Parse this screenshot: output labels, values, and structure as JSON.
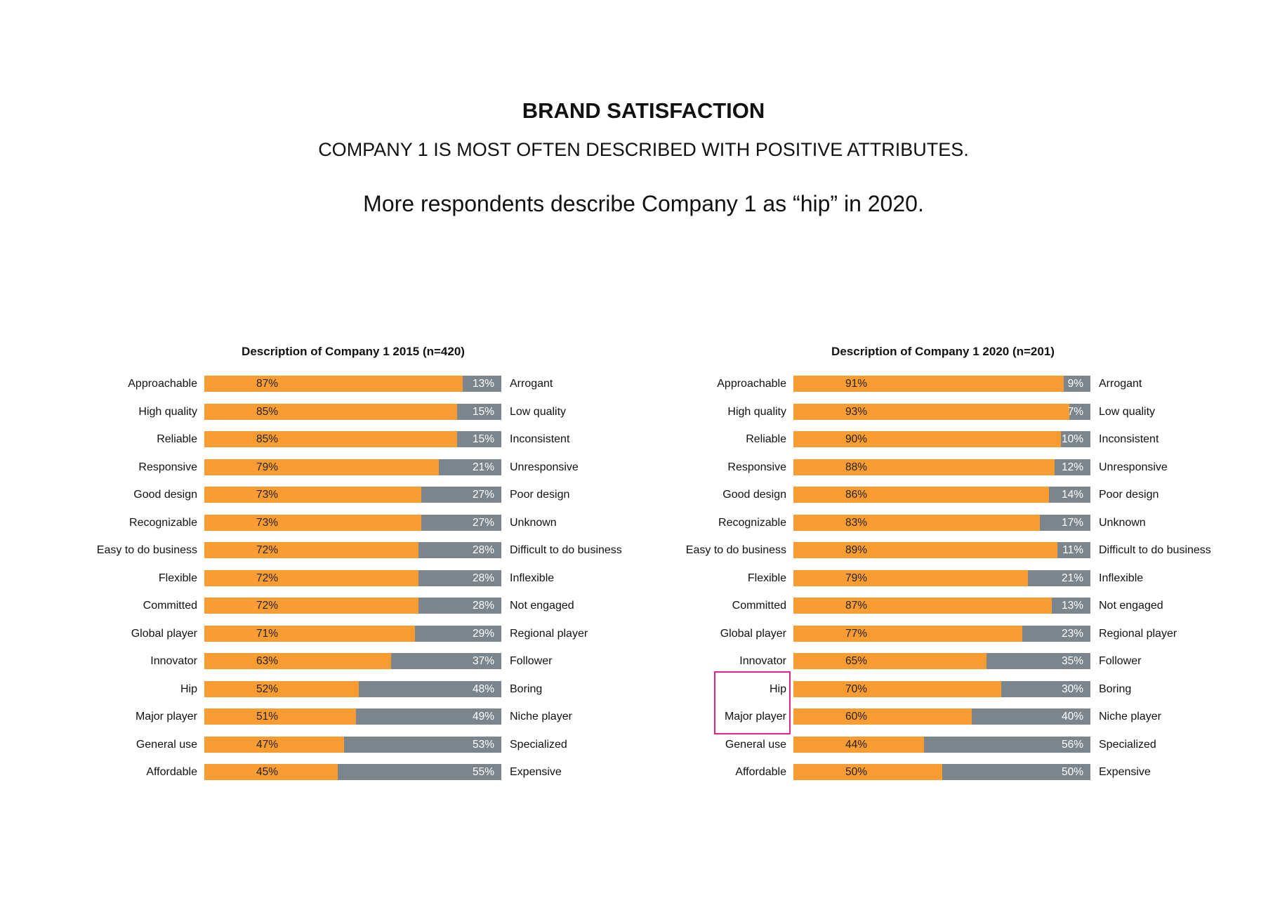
{
  "title": "BRAND SATISFACTION",
  "subtitle": "COMPANY 1 IS MOST OFTEN DESCRIBED WITH POSITIVE ATTRIBUTES.",
  "headline": "More respondents describe Company 1 as “hip” in 2020.",
  "colors": {
    "positive": "#F99D33",
    "negative": "#7B858E",
    "highlight": "#E0238C"
  },
  "chart_data": [
    {
      "type": "bar",
      "stacked": true,
      "orientation": "horizontal",
      "title": "Description of Company 1 2015 (n=420)",
      "categories": [
        "Approachable",
        "High quality",
        "Reliable",
        "Responsive",
        "Good design",
        "Recognizable",
        "Easy to do business",
        "Flexible",
        "Committed",
        "Global player",
        "Innovator",
        "Hip",
        "Major player",
        "General use",
        "Affordable"
      ],
      "opposites": [
        "Arrogant",
        "Low quality",
        "Inconsistent",
        "Unresponsive",
        "Poor design",
        "Unknown",
        "Difficult to do business",
        "Inflexible",
        "Not engaged",
        "Regional player",
        "Follower",
        "Boring",
        "Niche player",
        "Specialized",
        "Expensive"
      ],
      "series": [
        {
          "values": [
            87,
            85,
            85,
            79,
            73,
            73,
            72,
            72,
            72,
            71,
            63,
            52,
            51,
            47,
            45
          ]
        },
        {
          "values": [
            13,
            15,
            15,
            21,
            27,
            27,
            28,
            28,
            28,
            29,
            37,
            48,
            49,
            53,
            55
          ]
        }
      ],
      "unit": "%",
      "highlighted": []
    },
    {
      "type": "bar",
      "stacked": true,
      "orientation": "horizontal",
      "title": "Description of Company 1 2020 (n=201)",
      "categories": [
        "Approachable",
        "High quality",
        "Reliable",
        "Responsive",
        "Good design",
        "Recognizable",
        "Easy to do business",
        "Flexible",
        "Committed",
        "Global player",
        "Innovator",
        "Hip",
        "Major player",
        "General use",
        "Affordable"
      ],
      "opposites": [
        "Arrogant",
        "Low quality",
        "Inconsistent",
        "Unresponsive",
        "Poor design",
        "Unknown",
        "Difficult to do business",
        "Inflexible",
        "Not engaged",
        "Regional player",
        "Follower",
        "Boring",
        "Niche player",
        "Specialized",
        "Expensive"
      ],
      "series": [
        {
          "values": [
            91,
            93,
            90,
            88,
            86,
            83,
            89,
            79,
            87,
            77,
            65,
            70,
            60,
            44,
            50
          ]
        },
        {
          "values": [
            9,
            7,
            10,
            12,
            14,
            17,
            11,
            21,
            13,
            23,
            35,
            30,
            40,
            56,
            50
          ]
        }
      ],
      "unit": "%",
      "highlighted": [
        "Hip",
        "Major player"
      ]
    }
  ]
}
